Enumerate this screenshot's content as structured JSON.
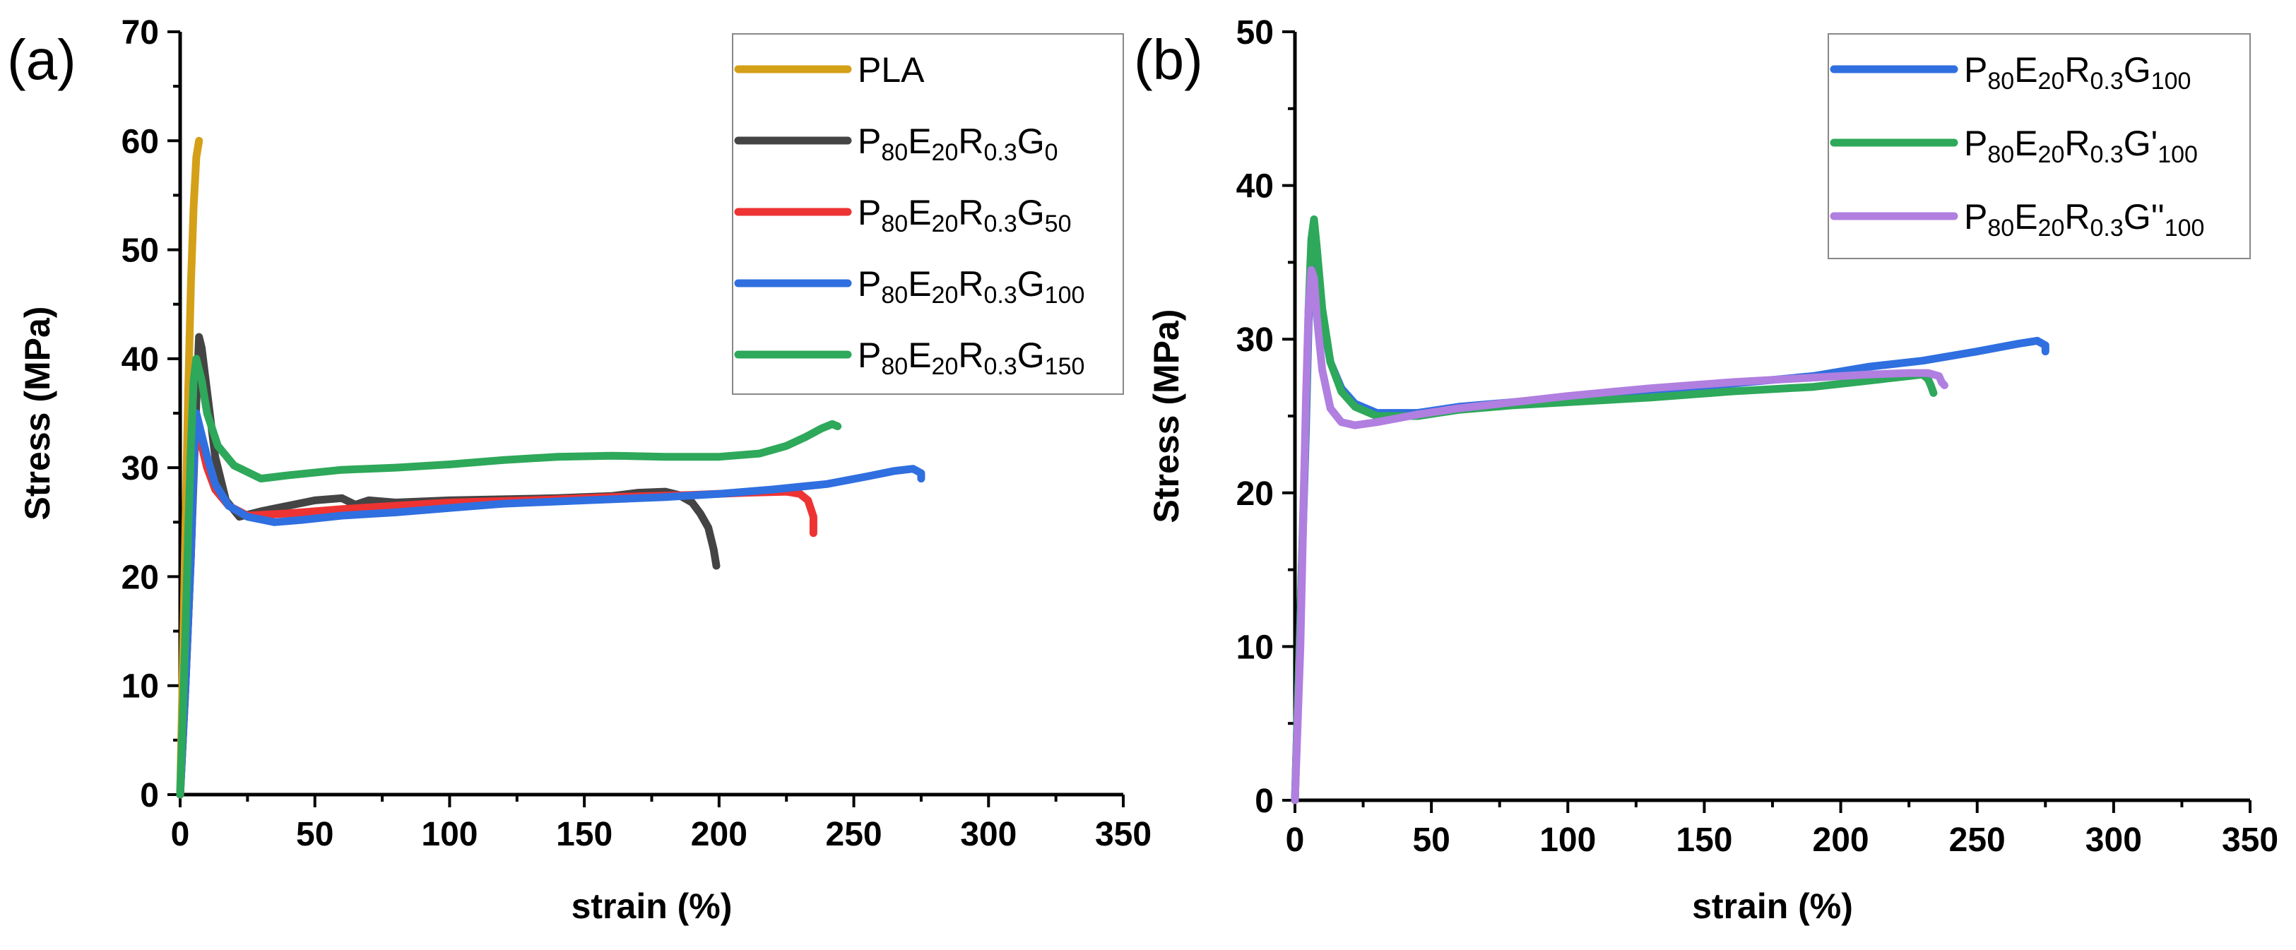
{
  "chart_data": [
    {
      "type": "line",
      "panel_label": "(a)",
      "xlabel": "strain (%)",
      "ylabel": "Stress (MPa)",
      "xlim": [
        0,
        350
      ],
      "ylim": [
        0,
        70
      ],
      "xticks": [
        0,
        50,
        100,
        150,
        200,
        250,
        300,
        350
      ],
      "yticks": [
        0,
        10,
        20,
        30,
        40,
        50,
        60,
        70
      ],
      "legend_position": "top-right",
      "series": [
        {
          "name": "PLA",
          "legend": [
            {
              "t": "PLA"
            }
          ],
          "color": "#D4A017",
          "x": [
            0,
            1,
            2,
            3,
            4,
            5,
            6,
            7
          ],
          "y": [
            0,
            12,
            25,
            37,
            47,
            54,
            58.5,
            60
          ]
        },
        {
          "name": "P80E20R0.3G0",
          "legend": [
            {
              "t": "P"
            },
            {
              "t": "80",
              "sub": true
            },
            {
              "t": "E"
            },
            {
              "t": "20",
              "sub": true
            },
            {
              "t": "R"
            },
            {
              "t": "0.3",
              "sub": true
            },
            {
              "t": "G"
            },
            {
              "t": "0",
              "sub": true
            }
          ],
          "color": "#444444",
          "x": [
            0,
            2,
            4,
            6,
            7,
            8,
            10,
            13,
            17,
            22,
            30,
            40,
            50,
            60,
            65,
            70,
            80,
            100,
            120,
            140,
            160,
            170,
            180,
            185,
            190,
            193,
            196,
            198,
            199
          ],
          "y": [
            0,
            10,
            22,
            36,
            42,
            41,
            37,
            31,
            27,
            25.5,
            26,
            26.5,
            27,
            27.2,
            26.6,
            27,
            26.8,
            27,
            27.1,
            27.2,
            27.4,
            27.7,
            27.8,
            27.5,
            26.8,
            25.8,
            24.5,
            22.5,
            21
          ]
        },
        {
          "name": "P80E20R0.3G50",
          "legend": [
            {
              "t": "P"
            },
            {
              "t": "80",
              "sub": true
            },
            {
              "t": "E"
            },
            {
              "t": "20",
              "sub": true
            },
            {
              "t": "R"
            },
            {
              "t": "0.3",
              "sub": true
            },
            {
              "t": "G"
            },
            {
              "t": "50",
              "sub": true
            }
          ],
          "color": "#EE3333",
          "x": [
            0,
            2,
            4,
            5,
            6,
            8,
            10,
            13,
            18,
            25,
            40,
            60,
            80,
            100,
            130,
            160,
            190,
            210,
            225,
            230,
            233,
            235,
            235
          ],
          "y": [
            0,
            10,
            22,
            30,
            34,
            32,
            30,
            28,
            26.5,
            25.6,
            25.8,
            26.2,
            26.5,
            26.8,
            27,
            27.3,
            27.5,
            27.7,
            27.8,
            27.6,
            27,
            25.5,
            24
          ]
        },
        {
          "name": "P80E20R0.3G100",
          "legend": [
            {
              "t": "P"
            },
            {
              "t": "80",
              "sub": true
            },
            {
              "t": "E"
            },
            {
              "t": "20",
              "sub": true
            },
            {
              "t": "R"
            },
            {
              "t": "0.3",
              "sub": true
            },
            {
              "t": "G"
            },
            {
              "t": "100",
              "sub": true
            }
          ],
          "color": "#2F6FE0",
          "x": [
            0,
            2,
            4,
            5,
            6,
            8,
            10,
            13,
            18,
            25,
            35,
            45,
            60,
            80,
            100,
            120,
            150,
            180,
            200,
            220,
            240,
            255,
            265,
            272,
            275,
            275
          ],
          "y": [
            0,
            10,
            22,
            30,
            35,
            33,
            31,
            28.5,
            26.5,
            25.5,
            25,
            25.2,
            25.6,
            25.9,
            26.3,
            26.7,
            27,
            27.3,
            27.6,
            28,
            28.5,
            29.2,
            29.7,
            29.9,
            29.5,
            29
          ]
        },
        {
          "name": "P80E20R0.3G150",
          "legend": [
            {
              "t": "P"
            },
            {
              "t": "80",
              "sub": true
            },
            {
              "t": "E"
            },
            {
              "t": "20",
              "sub": true
            },
            {
              "t": "R"
            },
            {
              "t": "0.3",
              "sub": true
            },
            {
              "t": "G"
            },
            {
              "t": "150",
              "sub": true
            }
          ],
          "color": "#2EA85A",
          "x": [
            0,
            2,
            3,
            4,
            5,
            6,
            8,
            10,
            14,
            20,
            30,
            40,
            60,
            80,
            100,
            120,
            140,
            160,
            180,
            200,
            215,
            225,
            232,
            238,
            242,
            244
          ],
          "y": [
            0,
            15,
            24,
            32,
            38,
            40,
            38,
            35,
            32,
            30.2,
            29,
            29.3,
            29.8,
            30,
            30.3,
            30.7,
            31,
            31.1,
            31,
            31,
            31.3,
            32,
            32.8,
            33.6,
            34,
            33.8
          ]
        }
      ]
    },
    {
      "type": "line",
      "panel_label": "(b)",
      "xlabel": "strain (%)",
      "ylabel": "Stress (MPa)",
      "xlim": [
        0,
        350
      ],
      "ylim": [
        0,
        50
      ],
      "xticks": [
        0,
        50,
        100,
        150,
        200,
        250,
        300,
        350
      ],
      "yticks": [
        0,
        10,
        20,
        30,
        40,
        50
      ],
      "legend_position": "top-right",
      "series": [
        {
          "name": "P80E20R0.3G100",
          "legend": [
            {
              "t": "P"
            },
            {
              "t": "80",
              "sub": true
            },
            {
              "t": "E"
            },
            {
              "t": "20",
              "sub": true
            },
            {
              "t": "R"
            },
            {
              "t": "0.3",
              "sub": true
            },
            {
              "t": "G"
            },
            {
              "t": "100",
              "sub": true
            }
          ],
          "color": "#2F6FE0",
          "x": [
            0,
            2,
            4,
            5,
            6,
            7,
            8,
            10,
            13,
            17,
            22,
            30,
            45,
            60,
            80,
            100,
            130,
            160,
            190,
            210,
            230,
            250,
            265,
            272,
            275,
            275
          ],
          "y": [
            0,
            12,
            24,
            31,
            36,
            37,
            35,
            31.5,
            28.5,
            26.8,
            25.8,
            25.2,
            25.2,
            25.6,
            25.9,
            26.2,
            26.7,
            27.1,
            27.6,
            28.2,
            28.6,
            29.2,
            29.7,
            29.9,
            29.6,
            29.2
          ]
        },
        {
          "name": "P80E20R0.3G'100",
          "legend": [
            {
              "t": "P"
            },
            {
              "t": "80",
              "sub": true
            },
            {
              "t": "E"
            },
            {
              "t": "20",
              "sub": true
            },
            {
              "t": "R"
            },
            {
              "t": "0.3",
              "sub": true
            },
            {
              "t": "G'"
            },
            {
              "t": "100",
              "sub": true
            }
          ],
          "color": "#2EA85A",
          "x": [
            0,
            2,
            4,
            5,
            6,
            7,
            8,
            10,
            13,
            17,
            22,
            30,
            45,
            60,
            80,
            100,
            130,
            160,
            190,
            210,
            225,
            230,
            232,
            233,
            234
          ],
          "y": [
            0,
            12,
            25,
            32,
            36.5,
            37.8,
            36,
            32,
            28.5,
            26.6,
            25.6,
            25,
            25,
            25.4,
            25.7,
            25.9,
            26.2,
            26.6,
            26.9,
            27.3,
            27.6,
            27.7,
            27.4,
            27,
            26.5
          ]
        },
        {
          "name": "P80E20R0.3G''100",
          "legend": [
            {
              "t": "P"
            },
            {
              "t": "80",
              "sub": true
            },
            {
              "t": "E"
            },
            {
              "t": "20",
              "sub": true
            },
            {
              "t": "R"
            },
            {
              "t": "0.3",
              "sub": true
            },
            {
              "t": "G''"
            },
            {
              "t": "100",
              "sub": true
            }
          ],
          "color": "#B07FE0",
          "x": [
            0,
            2,
            3,
            4,
            5,
            6,
            7,
            8,
            10,
            13,
            17,
            22,
            30,
            45,
            60,
            80,
            100,
            130,
            160,
            190,
            210,
            225,
            232,
            236,
            237,
            238
          ],
          "y": [
            0,
            10,
            18,
            26,
            32,
            34.5,
            34,
            31.5,
            28,
            25.5,
            24.6,
            24.4,
            24.6,
            25.1,
            25.5,
            25.9,
            26.3,
            26.8,
            27.2,
            27.5,
            27.7,
            27.8,
            27.8,
            27.6,
            27.2,
            27
          ]
        }
      ]
    }
  ]
}
